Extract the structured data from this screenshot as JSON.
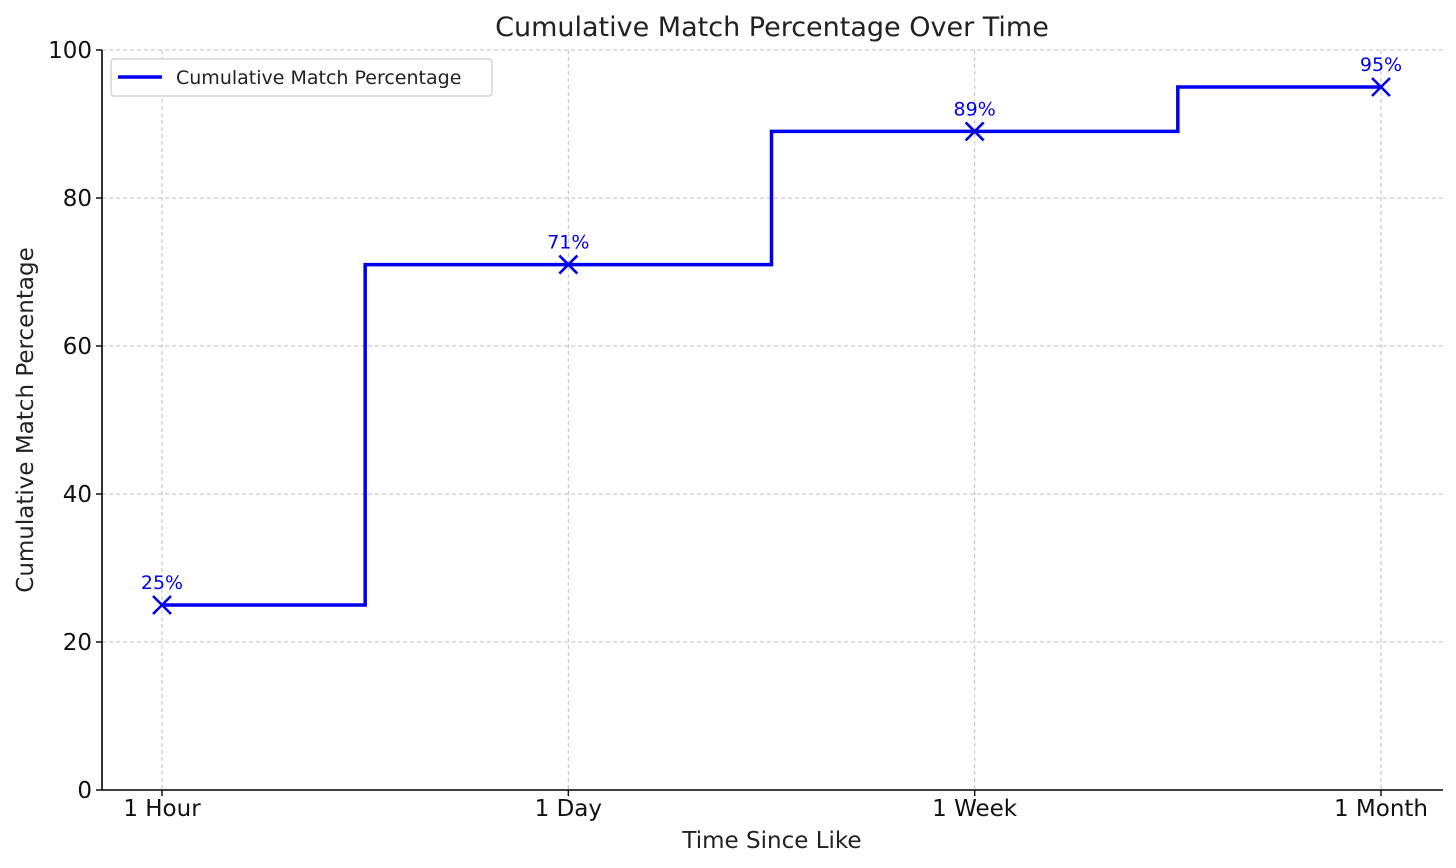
{
  "chart_data": {
    "type": "line",
    "step": "mid",
    "title": "Cumulative Match Percentage Over Time",
    "xlabel": "Time Since Like",
    "ylabel": "Cumulative Match Percentage",
    "categories": [
      "1 Hour",
      "1 Day",
      "1 Week",
      "1 Month"
    ],
    "ylim": [
      0,
      100
    ],
    "yticks": [
      0,
      20,
      40,
      60,
      80,
      100
    ],
    "grid": true,
    "legend_position": "top-left",
    "series": [
      {
        "name": "Cumulative Match Percentage",
        "color": "#0000ee",
        "marker": "x",
        "values": [
          25,
          71,
          89,
          95
        ],
        "labels": [
          "25%",
          "71%",
          "89%",
          "95%"
        ]
      }
    ]
  }
}
